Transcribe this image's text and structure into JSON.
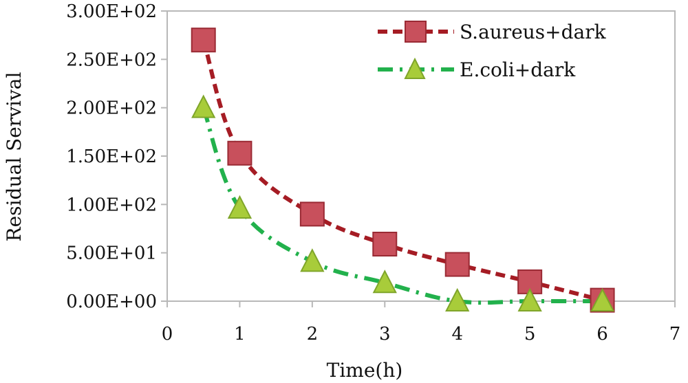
{
  "chart_data": {
    "type": "line",
    "title": "",
    "xlabel": "Time(h)",
    "ylabel": "Residual Servival",
    "xlim": [
      0,
      7
    ],
    "ylim": [
      0,
      300
    ],
    "x_ticks": [
      0,
      1,
      2,
      3,
      4,
      5,
      6,
      7
    ],
    "x_tick_labels": [
      "0",
      "1",
      "2",
      "3",
      "4",
      "5",
      "6",
      "7"
    ],
    "y_ticks": [
      0,
      50,
      100,
      150,
      200,
      250,
      300
    ],
    "y_tick_labels": [
      "0.00E+00",
      "5.00E+01",
      "1.00E+02",
      "1.50E+02",
      "2.00E+02",
      "2.50E+02",
      "3.00E+02"
    ],
    "grid": false,
    "legend_position": "top-right",
    "series": [
      {
        "name": "S.aureus+dark",
        "marker": "square",
        "line_style": "dashed",
        "line_color": "#a51c24",
        "marker_color": "#c8505c",
        "marker_edge": "#9a2a34",
        "x": [
          0.5,
          1,
          2,
          3,
          4,
          5,
          6
        ],
        "y": [
          270,
          153,
          90,
          59,
          38,
          20,
          1
        ]
      },
      {
        "name": "E.coli+dark",
        "marker": "triangle",
        "line_style": "dash-dot",
        "line_color": "#22b14c",
        "marker_color": "#a8cc3a",
        "marker_edge": "#7fa52a",
        "x": [
          0.5,
          1,
          2,
          3,
          4,
          5,
          6
        ],
        "y": [
          200,
          96,
          41,
          19,
          0,
          0,
          0
        ]
      }
    ]
  }
}
